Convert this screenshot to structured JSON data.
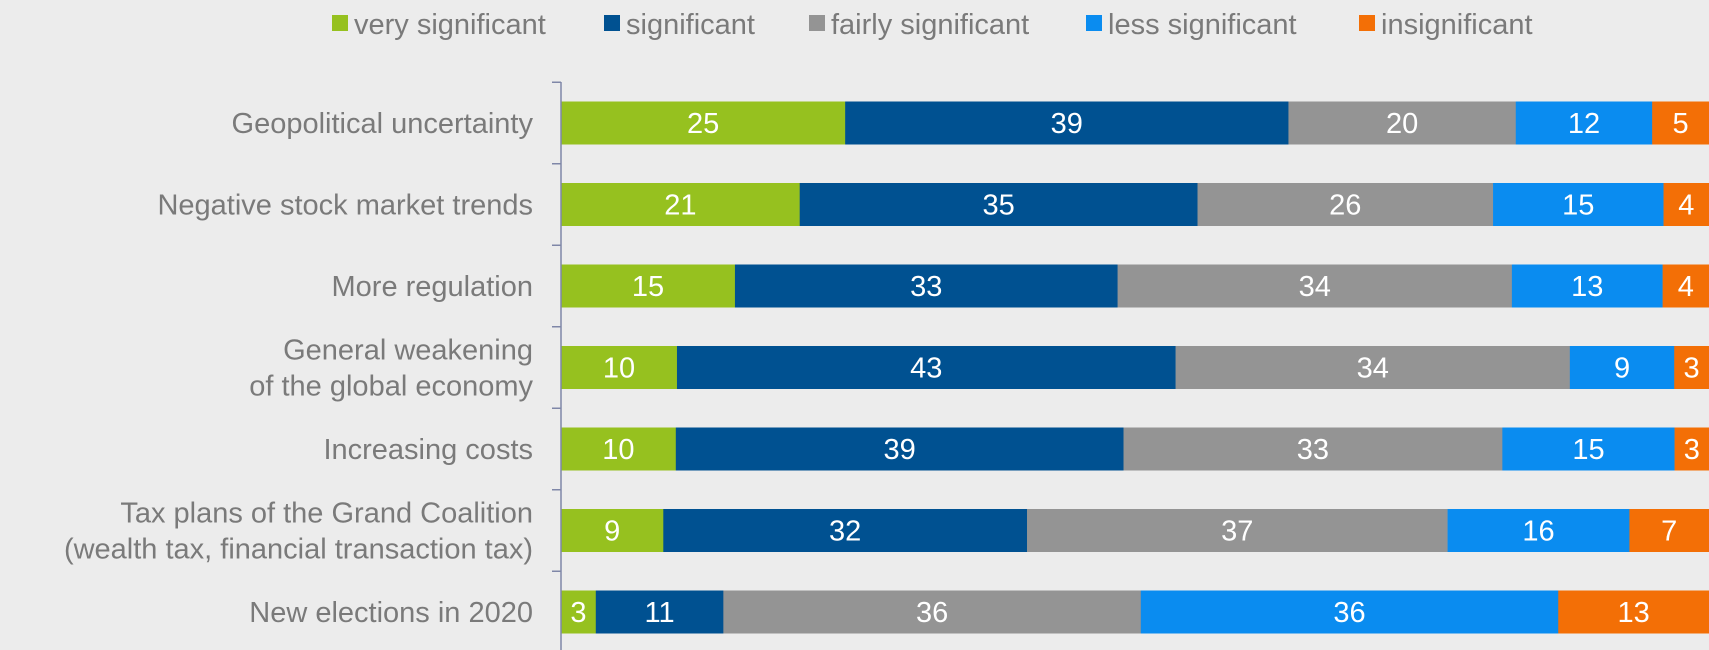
{
  "chart_data": {
    "type": "bar",
    "orientation": "horizontal",
    "stacked": true,
    "title": "",
    "xlabel": "",
    "ylabel": "",
    "legend_position": "top",
    "grid": false,
    "categories": [
      "Geopolitical uncertainty",
      "Negative stock market trends",
      "More regulation",
      "General weakening\nof the global economy",
      "Increasing costs",
      "Tax plans of the Grand Coalition\n(wealth tax, financial transaction tax)",
      "New elections in 2020"
    ],
    "series": [
      {
        "name": "very significant",
        "color": "#96c11f",
        "values": [
          25,
          21,
          15,
          10,
          10,
          9,
          3
        ]
      },
      {
        "name": "significant",
        "color": "#005191",
        "values": [
          39,
          35,
          33,
          43,
          39,
          32,
          11
        ]
      },
      {
        "name": "fairly significant",
        "color": "#949494",
        "values": [
          20,
          26,
          34,
          34,
          33,
          37,
          36
        ]
      },
      {
        "name": "less significant",
        "color": "#0a8cf0",
        "values": [
          12,
          15,
          13,
          9,
          15,
          16,
          36
        ]
      },
      {
        "name": "insignificant",
        "color": "#f36f06",
        "values": [
          5,
          4,
          4,
          3,
          3,
          7,
          13
        ]
      }
    ]
  }
}
